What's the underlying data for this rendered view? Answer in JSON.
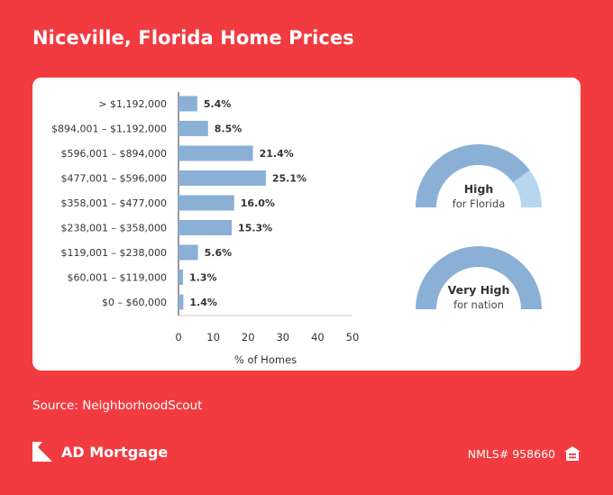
{
  "title": "Niceville, Florida Home Prices",
  "source": "Source: NeighborhoodScout",
  "brand": {
    "name": "AD Mortgage",
    "nmls": "NMLS# 958660"
  },
  "colors": {
    "background": "#f23b40",
    "bar": "#8ab0d6",
    "gauge_fill": "#8ab0d6",
    "gauge_remainder": "#b8d6ef"
  },
  "chart_data": [
    {
      "type": "bar",
      "orientation": "horizontal",
      "categories": [
        "> $1,192,000",
        "$894,001 – $1,192,000",
        "$596,001 – $894,000",
        "$477,001 – $596,000",
        "$358,001 – $477,000",
        "$238,001 – $358,000",
        "$119,001 – $238,000",
        "$60,001 – $119,000",
        "$0 – $60,000"
      ],
      "values": [
        5.4,
        8.5,
        21.4,
        25.1,
        16.0,
        15.3,
        5.6,
        1.3,
        1.4
      ],
      "value_labels": [
        "5.4%",
        "8.5%",
        "21.4%",
        "25.1%",
        "16.0%",
        "15.3%",
        "5.6%",
        "1.3%",
        "1.4%"
      ],
      "xlabel": "% of Homes",
      "xlim": [
        0,
        50
      ],
      "xticks": [
        0,
        10,
        20,
        30,
        40,
        50
      ]
    }
  ],
  "gauges": [
    {
      "label": "High",
      "sublabel": "for Florida",
      "level": 0.8
    },
    {
      "label": "Very High",
      "sublabel": "for nation",
      "level": 1.0
    }
  ]
}
